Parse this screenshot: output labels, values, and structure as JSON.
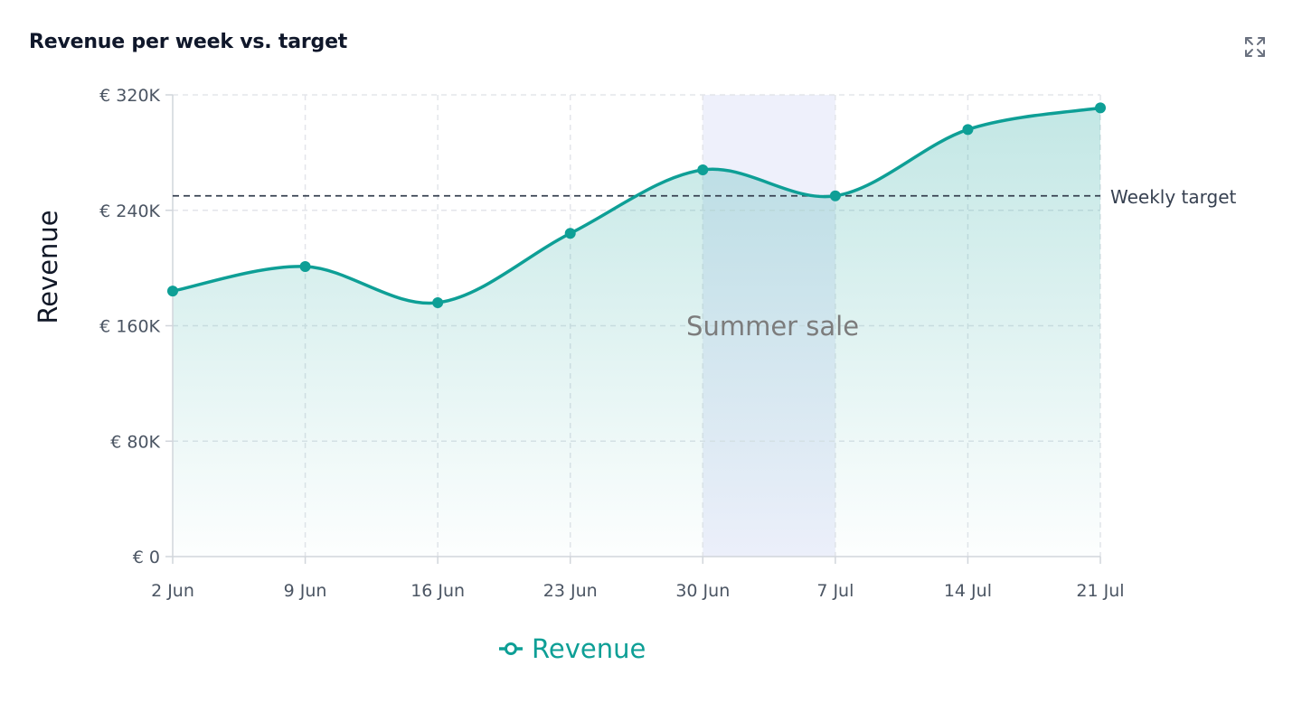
{
  "card": {
    "title": "Revenue per week vs. target",
    "expand_icon": "expand-icon"
  },
  "chart_data": {
    "type": "area",
    "title": "Revenue per week vs. target",
    "xlabel": "",
    "ylabel": "Revenue",
    "categories": [
      "2 Jun",
      "9 Jun",
      "16 Jun",
      "23 Jun",
      "30 Jun",
      "7 Jul",
      "14 Jul",
      "21 Jul"
    ],
    "series": [
      {
        "name": "Revenue",
        "values": [
          184000,
          201000,
          176000,
          224000,
          268000,
          250000,
          296000,
          311000
        ],
        "color": "#0e9f96"
      }
    ],
    "ylim": [
      0,
      320000
    ],
    "y_ticks": [
      {
        "value": 0,
        "label": "€ 0"
      },
      {
        "value": 80000,
        "label": "€ 80K"
      },
      {
        "value": 160000,
        "label": "€ 160K"
      },
      {
        "value": 240000,
        "label": "€ 240K"
      },
      {
        "value": 320000,
        "label": "€ 320K"
      }
    ],
    "reference_line": {
      "value": 250000,
      "label": "Weekly target",
      "color": "#374151"
    },
    "highlight_band": {
      "from": "30 Jun",
      "to": "7 Jul",
      "label": "Summer sale",
      "color": "#eef0fb"
    },
    "grid": true,
    "legend": {
      "position": "bottom-left",
      "entries": [
        "Revenue"
      ]
    }
  }
}
